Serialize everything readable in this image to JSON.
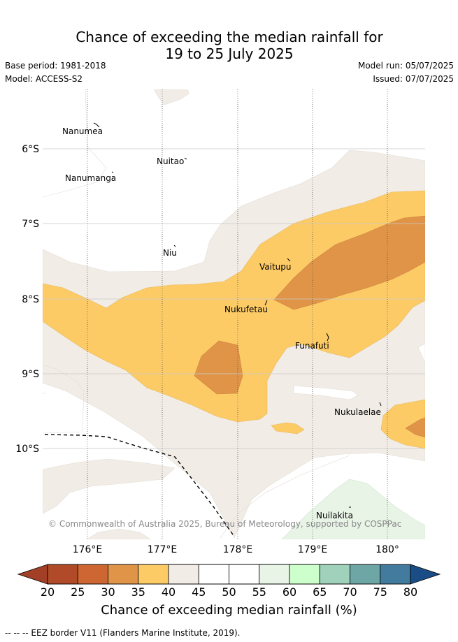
{
  "title_line1": "Chance of exceeding the median rainfall for",
  "title_line2": "19 to 25 July 2025",
  "base_period": "Base period: 1981-2018",
  "model": "Model: ACCESS-S2",
  "model_run": "Model run: 05/07/2025",
  "issued": "Issued: 07/07/2025",
  "places": {
    "nanumea": "Nanumea",
    "nuitao": "Nuitao",
    "nanumanga": "Nanumanga",
    "niu": "Niu",
    "vaitupu": "Vaitupu",
    "nukufetau": "Nukufetau",
    "funafuti": "Funafuti",
    "nukulaelae": "Nukulaelae",
    "nuilakita": "Nuilakita"
  },
  "lat_labels": [
    "6°S",
    "7°S",
    "8°S",
    "9°S",
    "10°S"
  ],
  "lon_labels": [
    "176°E",
    "177°E",
    "178°E",
    "179°E",
    "180°"
  ],
  "copyright": "© Commonwealth of Australia 2025, Bureau of Meteorology, supported by COSPPac",
  "colorbar": {
    "ticks": [
      "20",
      "25",
      "30",
      "35",
      "40",
      "45",
      "50",
      "55",
      "60",
      "65",
      "70",
      "75",
      "80"
    ],
    "colors": [
      "#b04a28",
      "#cd6633",
      "#e09448",
      "#fdcb66",
      "#f1ece6",
      "#ffffff",
      "#ffffff",
      "#e8f4e6",
      "#ccffcc",
      "#9fd1bb",
      "#6ea5a5",
      "#427b9e"
    ],
    "low_extend_color": "#a13f27",
    "high_extend_color": "#1a4d86",
    "label": "Chance of exceeding median rainfall (%)"
  },
  "footnote": "-- -- -- EEZ border V11 (Flanders Marine Institute, 2019)."
}
